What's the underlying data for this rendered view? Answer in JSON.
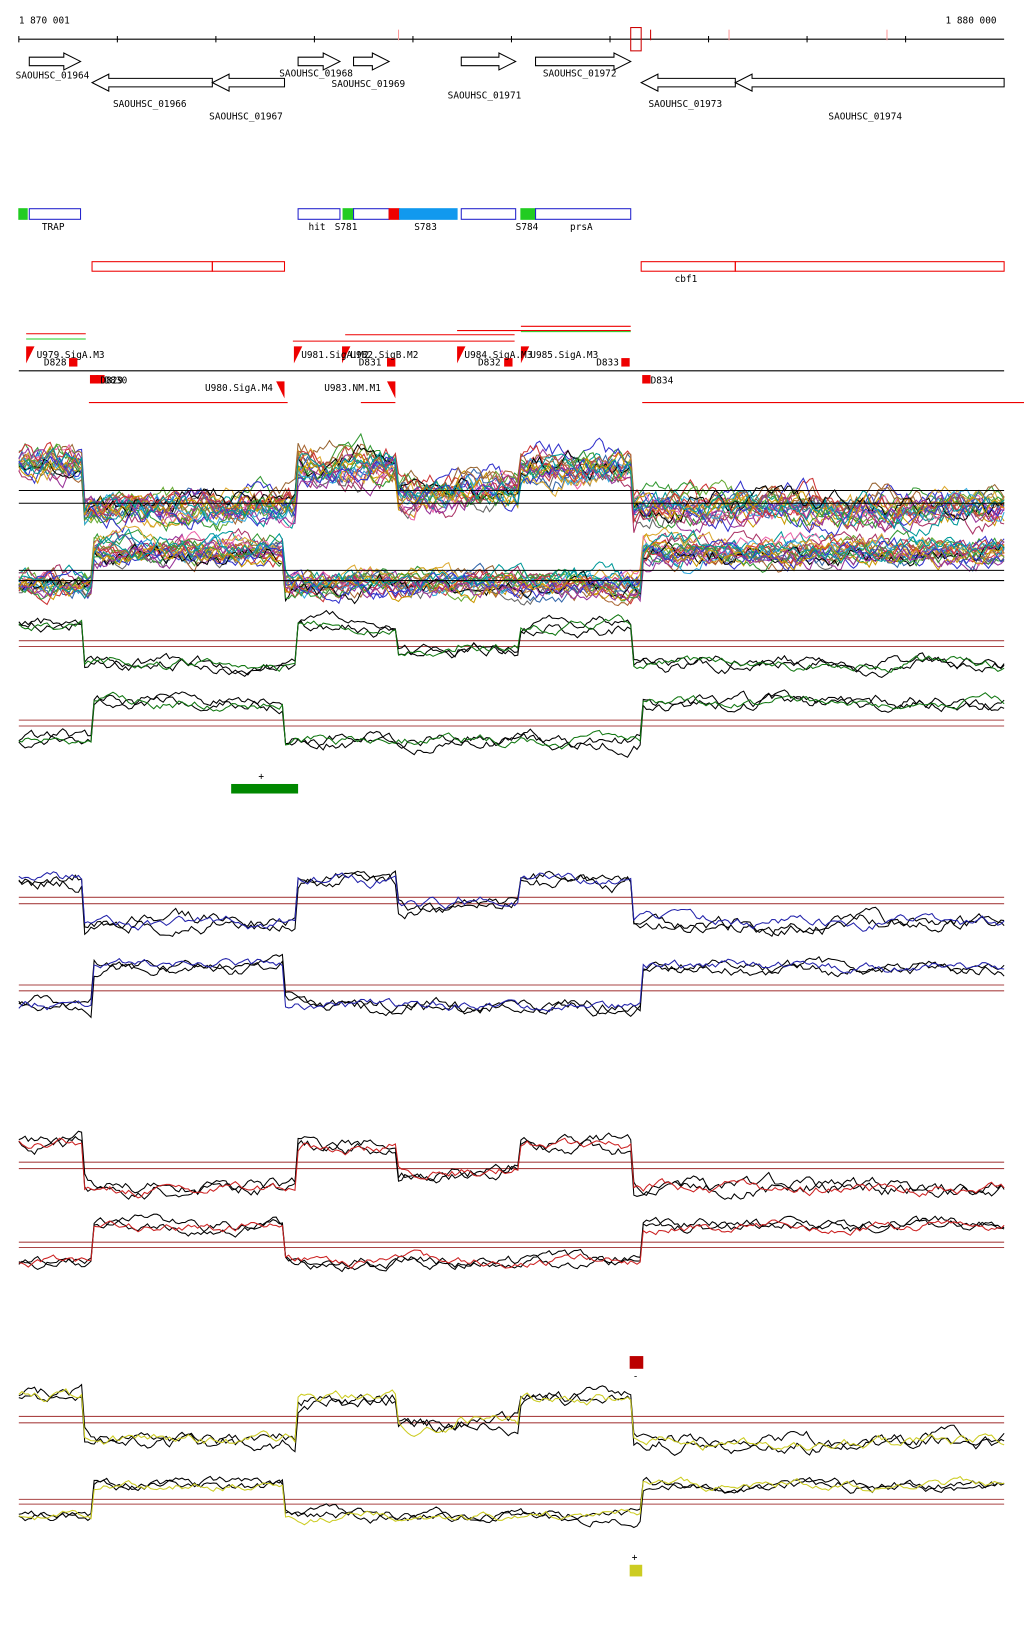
{
  "ruler": {
    "start": "1 870 001",
    "end": "1 880 000"
  },
  "genes": [
    {
      "label": "SAOUHSC_01964"
    },
    {
      "label": "SAOUHSC_01966"
    },
    {
      "label": "SAOUHSC_01967"
    },
    {
      "label": "SAOUHSC_01968"
    },
    {
      "label": "SAOUHSC_01969"
    },
    {
      "label": "SAOUHSC_01971"
    },
    {
      "label": "SAOUHSC_01972"
    },
    {
      "label": "SAOUHSC_01973"
    },
    {
      "label": "SAOUHSC_01974"
    }
  ],
  "features": [
    {
      "label": "TRAP"
    },
    {
      "label": "hit"
    },
    {
      "label": "S781"
    },
    {
      "label": "S783"
    },
    {
      "label": "S784"
    },
    {
      "label": "prsA"
    },
    {
      "label": "cbf1"
    }
  ],
  "transcripts": [
    {
      "label": "U979.SigA.M3"
    },
    {
      "label": "D828"
    },
    {
      "label": "D829"
    },
    {
      "label": "D830"
    },
    {
      "label": "U980.SigA.M4"
    },
    {
      "label": "U981.SigA.M2"
    },
    {
      "label": "U982.SigB.M2"
    },
    {
      "label": "D831"
    },
    {
      "label": "U983.NM.M1"
    },
    {
      "label": "U984.SigA.M3"
    },
    {
      "label": "D832"
    },
    {
      "label": "U985.SigA.M3"
    },
    {
      "label": "D833"
    },
    {
      "label": "D834"
    }
  ],
  "markers": [
    {
      "label": "+"
    },
    {
      "label": "-"
    },
    {
      "label": "+"
    }
  ]
}
